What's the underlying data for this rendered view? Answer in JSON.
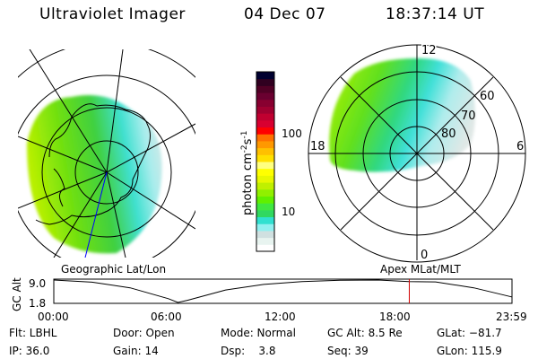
{
  "header": {
    "instrument": "Ultraviolet Imager",
    "date": "04 Dec 07",
    "time": "18:37:14 UT"
  },
  "left_panel": {
    "caption": "Geographic Lat/Lon",
    "projection": "south polar geographic"
  },
  "right_panel": {
    "caption": "Apex MLat/MLT",
    "mlt_labels": [
      "12",
      "18",
      "6",
      "0"
    ],
    "mlat_labels": [
      "80",
      "70",
      "60"
    ]
  },
  "colorbar": {
    "unit_label": "photon cm",
    "unit_exp1": "-2",
    "unit_mid": "s",
    "unit_exp2": "-1",
    "tick_labels": [
      "100",
      "10"
    ],
    "colors": [
      "#000030",
      "#300020",
      "#500025",
      "#6a0030",
      "#880030",
      "#a00030",
      "#c00030",
      "#d80030",
      "#ff0000",
      "#ff7000",
      "#ff9800",
      "#ffc000",
      "#ffe000",
      "#ffff80",
      "#ffff00",
      "#e8f800",
      "#c0f000",
      "#90f000",
      "#60f000",
      "#40e840",
      "#30d860",
      "#30e0d0",
      "#90f0f0",
      "#d0e0e0",
      "#e8f4f0",
      "#ffffff"
    ]
  },
  "chart_data": {
    "type": "line",
    "ylabel": "GC Alt",
    "ylim": [
      1.8,
      9.0
    ],
    "y_tick_labels": [
      "9.0",
      "1.8"
    ],
    "x_tick_labels": [
      "00:00",
      "06:00",
      "12:00",
      "18:00",
      "23:59"
    ],
    "x_hours": [
      0,
      2,
      4,
      6,
      6.5,
      7,
      9,
      11,
      13,
      15,
      17,
      18.6,
      20,
      22,
      23.98
    ],
    "values": [
      9.0,
      8.3,
      6.5,
      3.0,
      1.8,
      2.5,
      5.8,
      7.6,
      8.5,
      8.9,
      9.0,
      8.5,
      8.4,
      6.5,
      3.6
    ],
    "current_time_hours": 18.62,
    "current_marker_color": "#d00000"
  },
  "status": {
    "row1": [
      "Flt: LBHL",
      "Door: Open",
      "Mode: Normal",
      "GC Alt: 8.5 Re",
      "GLat: −81.7"
    ],
    "row2": [
      "IP: 36.0",
      "Gain: 14",
      "Dsp:    3.8",
      "Seq: 39",
      "GLon: 115.9"
    ]
  }
}
